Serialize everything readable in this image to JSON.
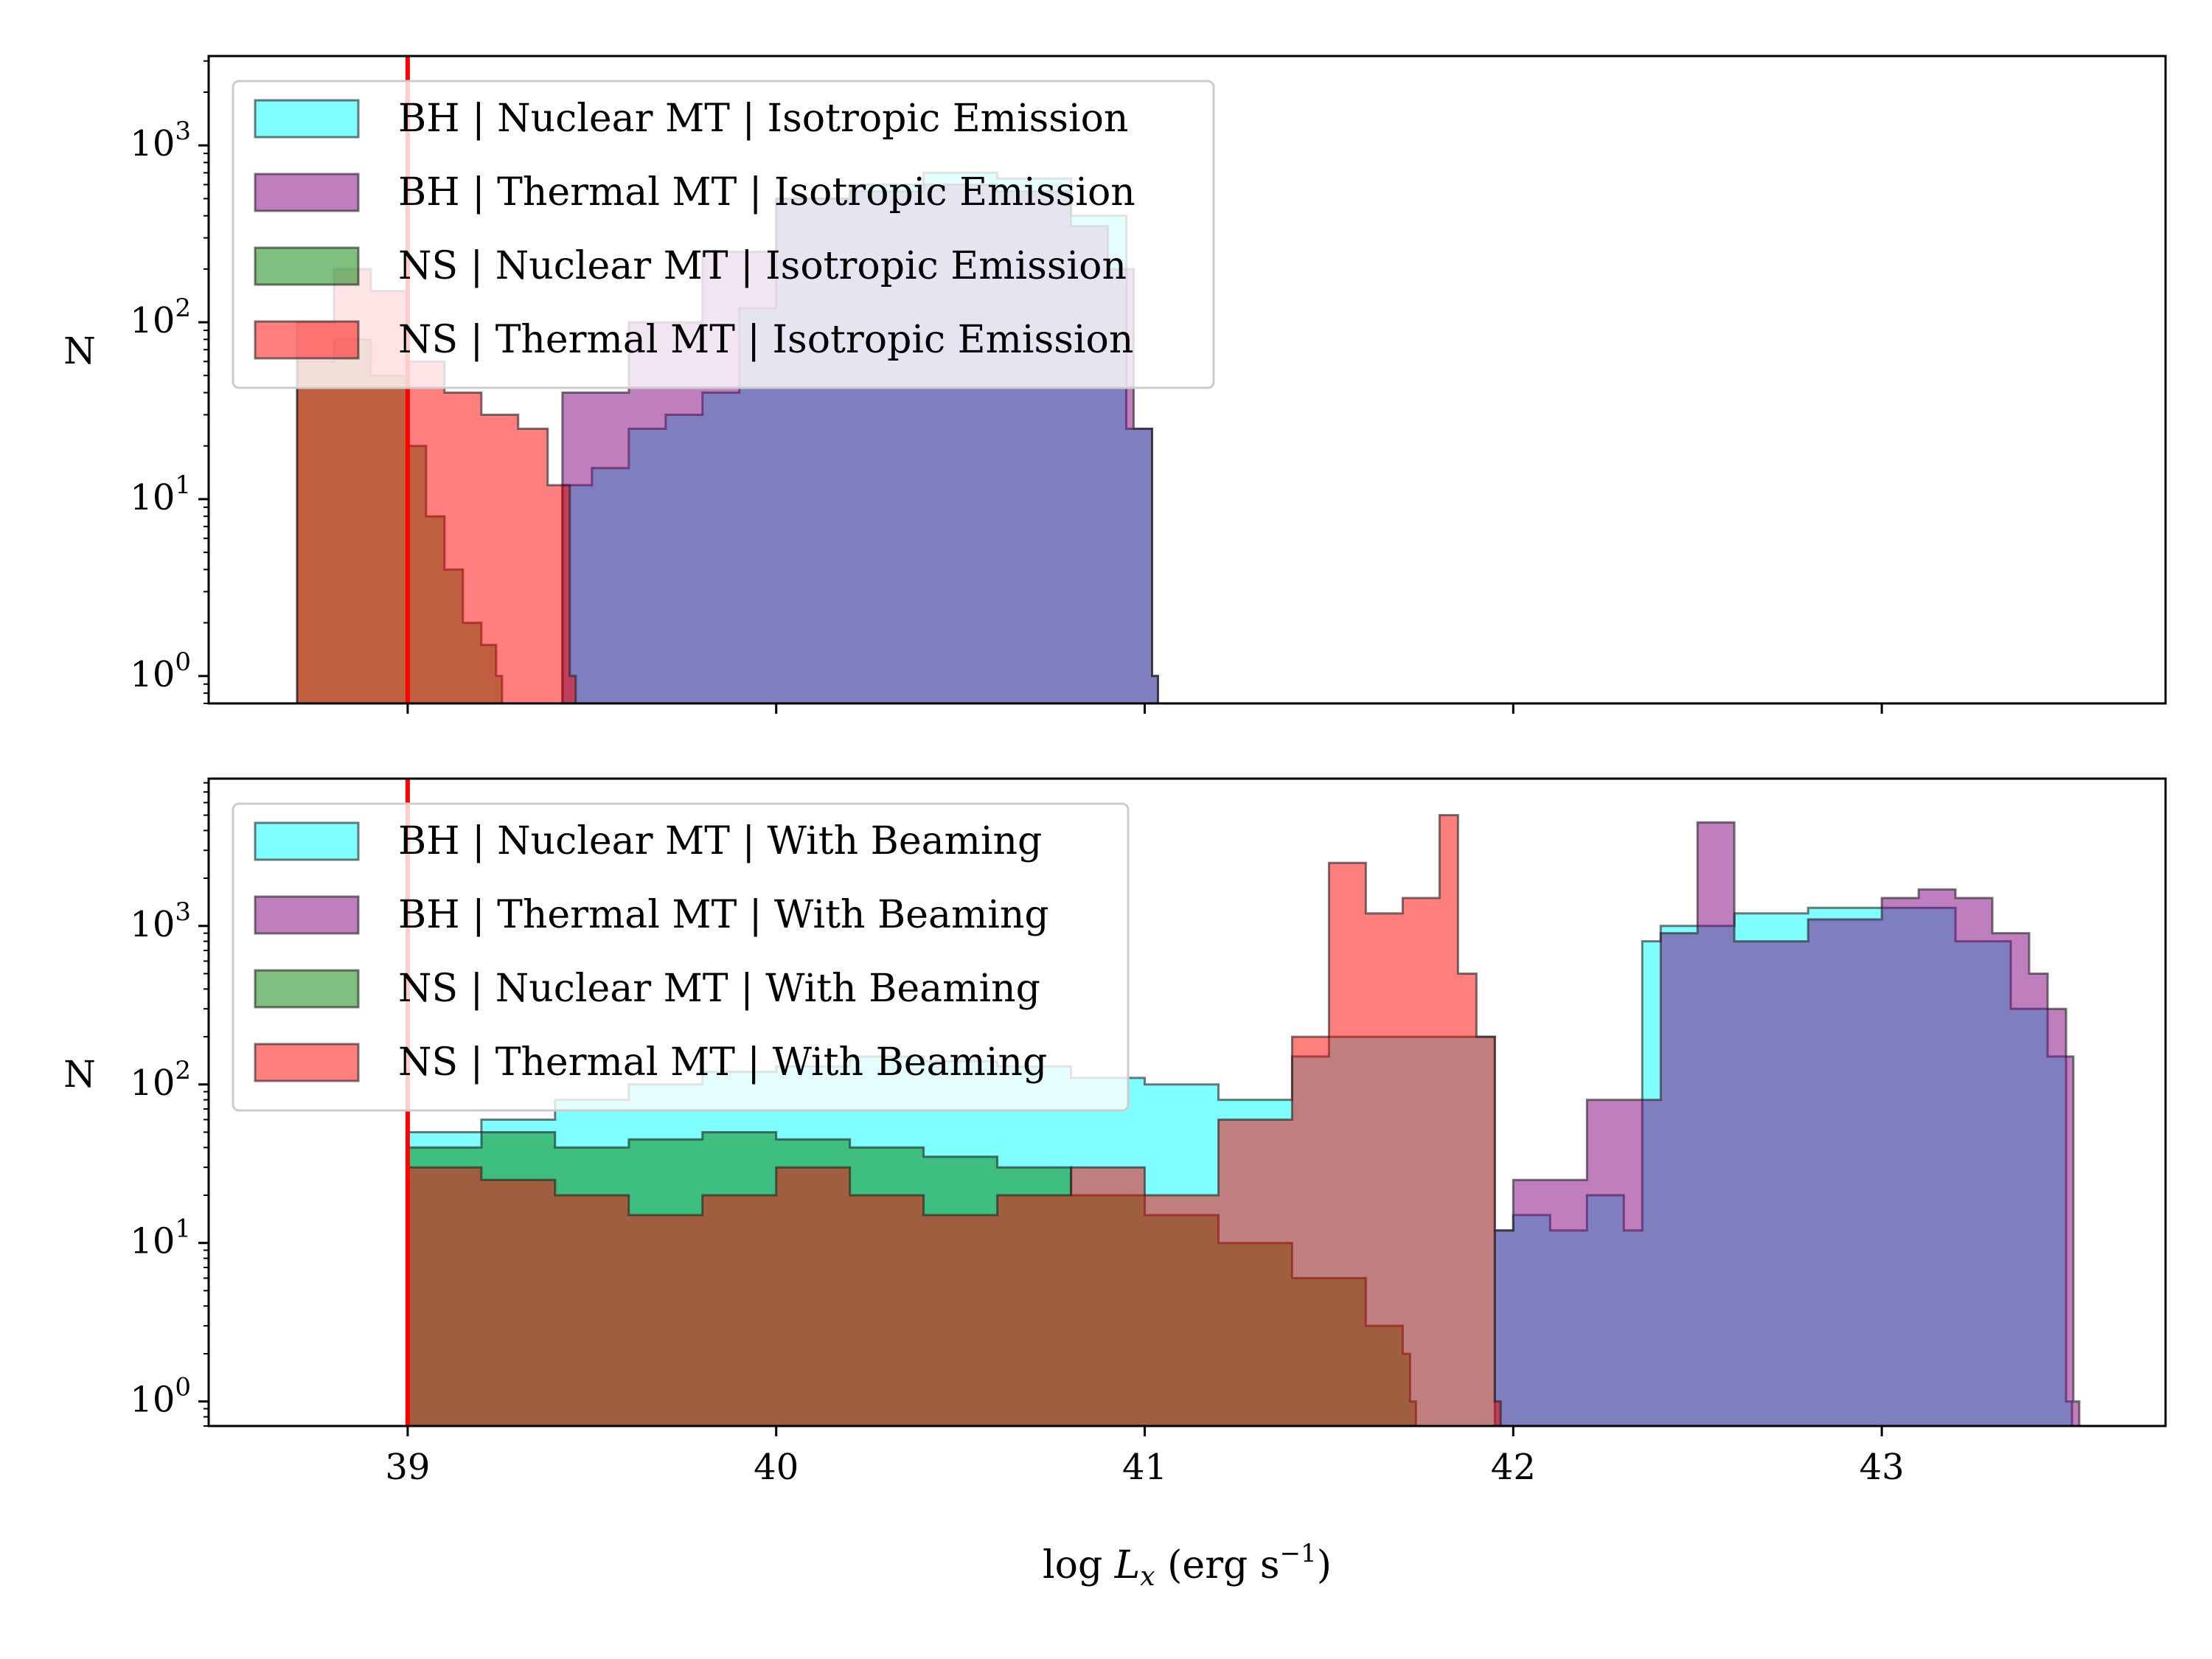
{
  "figure": {
    "xlabel_prefix": "log ",
    "xlabel_var": "L",
    "xlabel_sub": "x",
    "xlabel_units": " (erg s",
    "xlabel_exp": "−1",
    "xlabel_close": ")"
  },
  "colors": {
    "bh_nuclear": "#00ffff",
    "bh_thermal": "#800080",
    "ns_nuclear": "#008000",
    "ns_thermal": "#ff0000",
    "threshold_line": "#ff0000"
  },
  "chart_data": [
    {
      "type": "area",
      "subtype": "step-histogram",
      "ylabel": "N",
      "yscale": "log",
      "ylim": [
        0.7,
        3200
      ],
      "yticks": [
        {
          "value": 1,
          "base": "10",
          "exp": "0"
        },
        {
          "value": 10,
          "base": "10",
          "exp": "1"
        },
        {
          "value": 100,
          "base": "10",
          "exp": "2"
        },
        {
          "value": 1000,
          "base": "10",
          "exp": "3"
        }
      ],
      "xlim": [
        38.46,
        43.77
      ],
      "xticks": [
        39,
        40,
        41,
        42,
        43
      ],
      "show_xtick_labels": false,
      "vline": 39,
      "legend_position": "upper left",
      "series": [
        {
          "name": "BH | Nuclear MT | Isotropic Emission",
          "color": "#00ffff",
          "x": [
            39.42,
            39.5,
            39.6,
            39.7,
            39.8,
            39.9,
            40.0,
            40.2,
            40.4,
            40.6,
            40.8,
            40.95,
            41.02
          ],
          "values": [
            12,
            15,
            25,
            30,
            40,
            120,
            500,
            600,
            700,
            650,
            400,
            25,
            1
          ]
        },
        {
          "name": "BH | Thermal MT | Isotropic Emission",
          "color": "#800080",
          "x": [
            39.42,
            39.6,
            39.8,
            40.0,
            40.2,
            40.4,
            40.6,
            40.8,
            40.9,
            40.97,
            41.02
          ],
          "values": [
            40,
            100,
            250,
            500,
            550,
            600,
            550,
            350,
            200,
            25,
            1
          ]
        },
        {
          "name": "NS | Nuclear MT | Isotropic Emission",
          "color": "#008000",
          "x": [
            38.7,
            38.8,
            38.9,
            39.0,
            39.05,
            39.1,
            39.15,
            39.2,
            39.24
          ],
          "values": [
            60,
            80,
            50,
            20,
            8,
            4,
            2,
            1.5,
            1
          ]
        },
        {
          "name": "NS | Thermal MT | Isotropic Emission",
          "color": "#ff0000",
          "x": [
            38.7,
            38.8,
            38.9,
            39.0,
            39.1,
            39.2,
            39.3,
            39.38,
            39.44
          ],
          "values": [
            100,
            200,
            150,
            60,
            40,
            30,
            25,
            12,
            1
          ]
        }
      ]
    },
    {
      "type": "area",
      "subtype": "step-histogram",
      "ylabel": "N",
      "yscale": "log",
      "ylim": [
        0.7,
        8500
      ],
      "yticks": [
        {
          "value": 1,
          "base": "10",
          "exp": "0"
        },
        {
          "value": 10,
          "base": "10",
          "exp": "1"
        },
        {
          "value": 100,
          "base": "10",
          "exp": "2"
        },
        {
          "value": 1000,
          "base": "10",
          "exp": "3"
        }
      ],
      "xlim": [
        38.46,
        43.77
      ],
      "xticks": [
        39,
        40,
        41,
        42,
        43
      ],
      "show_xtick_labels": true,
      "vline": 39,
      "legend_position": "upper left",
      "series": [
        {
          "name": "BH | Nuclear MT | With Beaming",
          "color": "#00ffff",
          "x": [
            39.0,
            39.2,
            39.4,
            39.6,
            39.8,
            40.0,
            40.2,
            40.4,
            40.6,
            40.8,
            41.0,
            41.2,
            41.4,
            41.5,
            41.7,
            41.9,
            41.95,
            42.0,
            42.1,
            42.2,
            42.3,
            42.35,
            42.4,
            42.6,
            42.8,
            43.0,
            43.2,
            43.35,
            43.45,
            43.5
          ],
          "values": [
            50,
            60,
            80,
            100,
            120,
            130,
            150,
            140,
            130,
            110,
            100,
            80,
            150,
            200,
            200,
            200,
            12,
            15,
            12,
            20,
            12,
            800,
            1000,
            1200,
            1300,
            1300,
            800,
            300,
            150,
            1
          ]
        },
        {
          "name": "BH | Thermal MT | With Beaming",
          "color": "#800080",
          "x": [
            41.95,
            42.0,
            42.2,
            42.4,
            42.5,
            42.6,
            42.8,
            43.0,
            43.1,
            43.2,
            43.3,
            43.4,
            43.45,
            43.5,
            43.52
          ],
          "values": [
            12,
            25,
            80,
            900,
            4500,
            800,
            1100,
            1500,
            1700,
            1500,
            900,
            500,
            300,
            150,
            1
          ]
        },
        {
          "name": "NS | Nuclear MT | With Beaming",
          "color": "#008000",
          "x": [
            39.0,
            39.2,
            39.4,
            39.6,
            39.8,
            40.0,
            40.2,
            40.4,
            40.6,
            40.8,
            41.0,
            41.2,
            41.4,
            41.6,
            41.7,
            41.72
          ],
          "values": [
            40,
            50,
            40,
            45,
            50,
            45,
            40,
            35,
            30,
            20,
            15,
            10,
            6,
            3,
            2,
            1
          ]
        },
        {
          "name": "NS | Thermal MT | With Beaming",
          "color": "#ff0000",
          "x": [
            39.0,
            39.2,
            39.4,
            39.6,
            39.8,
            40.0,
            40.2,
            40.4,
            40.6,
            40.8,
            41.0,
            41.2,
            41.4,
            41.5,
            41.6,
            41.7,
            41.8,
            41.85,
            41.9,
            41.95
          ],
          "values": [
            30,
            25,
            20,
            15,
            20,
            30,
            20,
            15,
            20,
            30,
            20,
            60,
            200,
            2500,
            1200,
            1500,
            5000,
            500,
            200,
            1
          ]
        }
      ]
    }
  ]
}
